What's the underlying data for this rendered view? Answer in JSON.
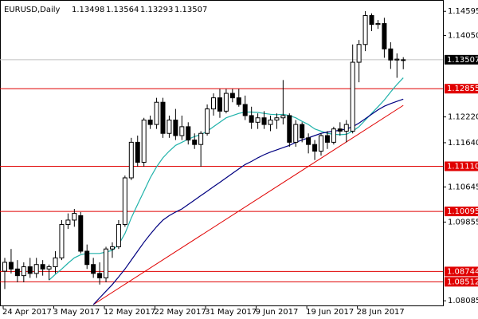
{
  "chart_data": {
    "type": "candlestick",
    "title": "EURUSD,Daily",
    "categories": [
      "24 Apr 2017",
      null,
      null,
      null,
      null,
      null,
      null,
      null,
      "3 May 2017",
      null,
      null,
      null,
      null,
      null,
      null,
      null,
      "12 May 2017",
      null,
      null,
      null,
      null,
      null,
      null,
      null,
      "22 May 2017",
      null,
      null,
      null,
      null,
      null,
      null,
      null,
      "31 May 2017",
      null,
      null,
      null,
      null,
      null,
      null,
      null,
      "9 Jun 2017",
      null,
      null,
      null,
      null,
      null,
      null,
      null,
      "19 Jun 2017",
      null,
      null,
      null,
      null,
      null,
      null,
      null,
      "28 Jun 2017",
      null,
      null,
      null,
      null,
      null,
      null,
      null
    ],
    "open": [
      1.0875,
      1.0895,
      1.088,
      1.0865,
      1.0885,
      1.087,
      1.089,
      1.088,
      1.0885,
      1.0905,
      1.098,
      1.099,
      1.1,
      1.092,
      1.089,
      1.087,
      1.086,
      1.0925,
      1.093,
      1.098,
      1.1085,
      1.1165,
      1.112,
      1.1215,
      1.1205,
      1.1255,
      1.1185,
      1.1215,
      1.118,
      1.12,
      1.117,
      1.116,
      1.1185,
      1.124,
      1.1265,
      1.1235,
      1.1275,
      1.1265,
      1.125,
      1.1225,
      1.121,
      1.122,
      1.1205,
      1.1215,
      1.122,
      1.1225,
      1.1165,
      1.1205,
      1.1175,
      1.116,
      1.1145,
      1.118,
      1.1165,
      1.1195,
      1.119,
      1.119,
      1.1345,
      1.1385,
      1.145,
      1.143,
      1.1432,
      1.1375,
      1.135,
      1.13498
    ],
    "high": [
      1.0905,
      1.0925,
      1.09,
      1.0895,
      1.0905,
      1.0905,
      1.09,
      1.089,
      1.092,
      1.099,
      1.1005,
      1.1015,
      1.1008,
      1.0935,
      1.0905,
      1.0895,
      1.093,
      1.094,
      1.099,
      1.109,
      1.1175,
      1.118,
      1.122,
      1.1225,
      1.1265,
      1.1265,
      1.1225,
      1.124,
      1.1225,
      1.121,
      1.1185,
      1.119,
      1.125,
      1.1275,
      1.1285,
      1.1285,
      1.1285,
      1.1285,
      1.127,
      1.1245,
      1.123,
      1.1235,
      1.1225,
      1.123,
      1.1305,
      1.123,
      1.1215,
      1.121,
      1.1185,
      1.117,
      1.1185,
      1.119,
      1.12,
      1.121,
      1.1215,
      1.1385,
      1.1395,
      1.146,
      1.1455,
      1.144,
      1.1445,
      1.139,
      1.1365,
      1.13564
    ],
    "low": [
      1.0835,
      1.087,
      1.085,
      1.085,
      1.086,
      1.086,
      1.0865,
      1.0855,
      1.087,
      1.09,
      1.097,
      1.0975,
      1.0915,
      1.088,
      1.086,
      1.0845,
      1.085,
      1.0905,
      1.0925,
      1.0975,
      1.108,
      1.111,
      1.111,
      1.1195,
      1.1195,
      1.1175,
      1.1175,
      1.117,
      1.117,
      1.116,
      1.115,
      1.111,
      1.118,
      1.1225,
      1.122,
      1.123,
      1.1255,
      1.1245,
      1.1215,
      1.1195,
      1.1195,
      1.1195,
      1.119,
      1.1195,
      1.1205,
      1.1155,
      1.1155,
      1.1165,
      1.114,
      1.1125,
      1.1135,
      1.115,
      1.116,
      1.118,
      1.1165,
      1.1185,
      1.13,
      1.137,
      1.1415,
      1.142,
      1.1355,
      1.133,
      1.131,
      1.13293
    ],
    "close": [
      1.0895,
      1.088,
      1.0865,
      1.0885,
      1.087,
      1.089,
      1.088,
      1.0885,
      1.0905,
      1.098,
      1.099,
      1.1005,
      1.092,
      1.089,
      1.087,
      1.086,
      1.0925,
      1.093,
      1.098,
      1.1085,
      1.1165,
      1.112,
      1.1215,
      1.1205,
      1.1255,
      1.1185,
      1.1215,
      1.118,
      1.12,
      1.117,
      1.116,
      1.1185,
      1.124,
      1.1265,
      1.1235,
      1.1275,
      1.1265,
      1.125,
      1.1225,
      1.121,
      1.122,
      1.1205,
      1.1215,
      1.122,
      1.1225,
      1.1165,
      1.1205,
      1.1175,
      1.116,
      1.1145,
      1.118,
      1.1165,
      1.1195,
      1.119,
      1.1205,
      1.1345,
      1.1385,
      1.145,
      1.143,
      1.1432,
      1.1375,
      1.135,
      1.1352,
      1.13507
    ],
    "lines": [
      {
        "color": "#20b2aa",
        "values": [
          null,
          null,
          null,
          null,
          null,
          null,
          null,
          1.0855,
          1.0868,
          1.088,
          1.0893,
          1.0905,
          1.0912,
          1.0915,
          1.0915,
          1.0915,
          1.0918,
          1.0922,
          1.0935,
          1.096,
          1.0995,
          1.1025,
          1.1055,
          1.1085,
          1.111,
          1.113,
          1.1145,
          1.1158,
          1.1165,
          1.1172,
          1.1178,
          1.1182,
          1.119,
          1.12,
          1.121,
          1.122,
          1.1225,
          1.123,
          1.1233,
          1.1233,
          1.1232,
          1.123,
          1.1228,
          1.1227,
          1.1228,
          1.1225,
          1.122,
          1.1212,
          1.1205,
          1.1195,
          1.119,
          1.1185,
          1.1183,
          1.1182,
          1.1183,
          1.119,
          1.12,
          1.1215,
          1.123,
          1.1245,
          1.126,
          1.1278,
          1.1295,
          1.131
        ]
      },
      {
        "color": "#000080",
        "values": [
          null,
          null,
          null,
          null,
          null,
          null,
          null,
          null,
          null,
          null,
          null,
          null,
          null,
          null,
          1.08,
          1.0815,
          1.083,
          1.0845,
          1.0862,
          1.088,
          1.09,
          1.092,
          1.094,
          1.0958,
          1.0975,
          1.099,
          1.1,
          1.1008,
          1.1015,
          1.1025,
          1.1035,
          1.1045,
          1.1055,
          1.1065,
          1.1075,
          1.1085,
          1.1095,
          1.1105,
          1.1115,
          1.1122,
          1.113,
          1.1137,
          1.1143,
          1.1148,
          1.1153,
          1.1158,
          1.1165,
          1.117,
          1.1175,
          1.118,
          1.1185,
          1.1188,
          1.119,
          1.1192,
          1.1195,
          1.12,
          1.1208,
          1.1218,
          1.1228,
          1.1238,
          1.1246,
          1.1252,
          1.1257,
          1.1262
        ]
      }
    ],
    "trendline": {
      "color": "#e00000",
      "points": [
        [
          14,
          1.08
        ],
        [
          63,
          1.1248
        ]
      ]
    },
    "levels": [
      1.12855,
      {
        "value": 1.1111,
        "label": "1.11110"
      },
      1.10095,
      1.08744,
      1.08512
    ],
    "level_color": "#e00000",
    "current_price": 1.13507,
    "ylim": [
      1.0798,
      1.1485
    ],
    "yticks": [
      1.14595,
      {
        "value": 1.1405,
        "label": "1.14050"
      },
      {
        "value": 1.1222,
        "label": "1.12220"
      },
      {
        "value": 1.1164,
        "label": "1.11640"
      },
      1.10645,
      1.09855,
      1.08085
    ]
  }
}
